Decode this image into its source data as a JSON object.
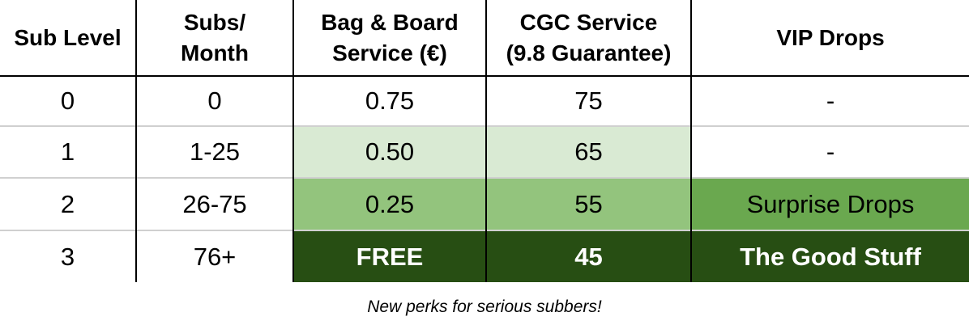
{
  "table": {
    "header": [
      "Sub Level",
      "Subs/\nMonth",
      "Bag & Board\nService (€)",
      "CGC Service\n(9.8 Guarantee)",
      "VIP Drops"
    ],
    "rows": [
      [
        "0",
        "0",
        "0.75",
        "75",
        "-"
      ],
      [
        "1",
        "1-25",
        "0.50",
        "65",
        "-"
      ],
      [
        "2",
        "26-75",
        "0.25",
        "55",
        "Surprise Drops"
      ],
      [
        "3",
        "76+",
        "FREE",
        "45",
        "The Good Stuff"
      ]
    ]
  },
  "caption": "New perks for serious subbers!"
}
